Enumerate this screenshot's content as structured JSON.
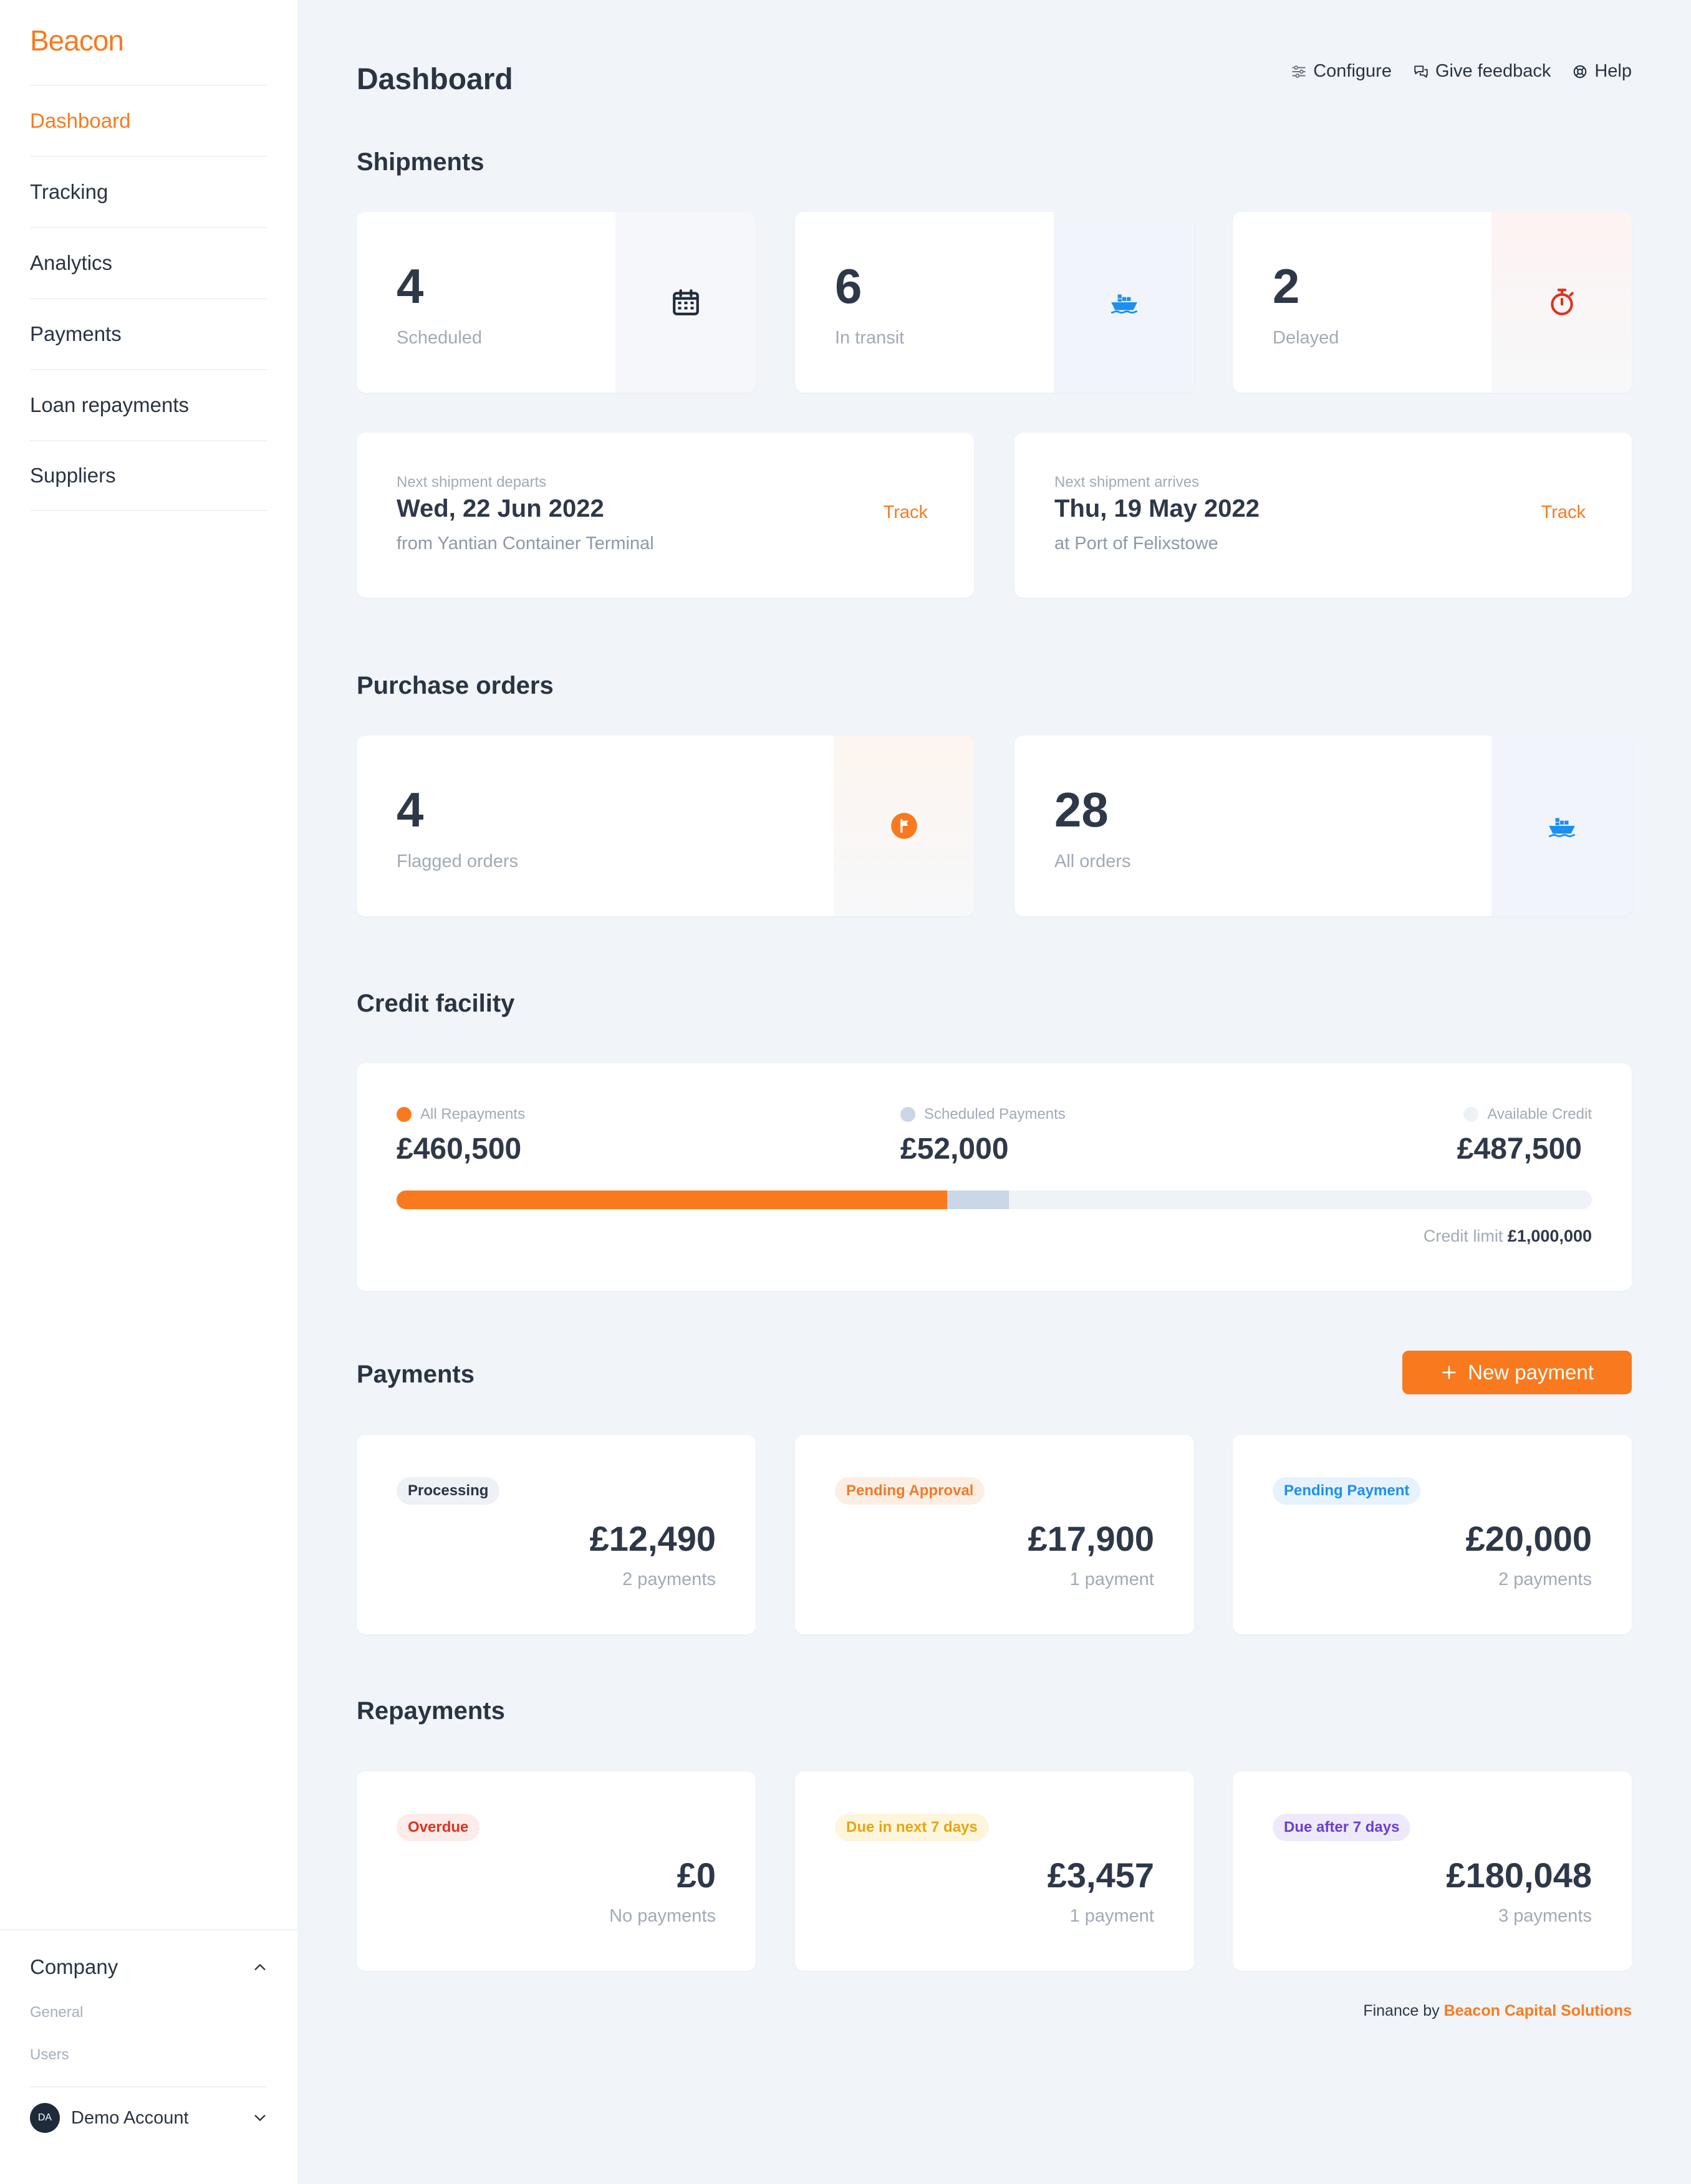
{
  "colors": {
    "accent": "#f97a1e",
    "scheduled_bar": "#cbd6e6",
    "available_dot": "#eef1f6",
    "ship_blue": "#1d8ff0",
    "delay_red": "#e0321f"
  },
  "sidebar": {
    "logo": "Beacon",
    "items": [
      {
        "label": "Dashboard"
      },
      {
        "label": "Tracking"
      },
      {
        "label": "Analytics"
      },
      {
        "label": "Payments"
      },
      {
        "label": "Loan repayments"
      },
      {
        "label": "Suppliers"
      }
    ],
    "company": {
      "label": "Company",
      "icon": "chevron-up-icon",
      "links": [
        {
          "label": "General"
        },
        {
          "label": "Users"
        }
      ]
    },
    "account": {
      "initials": "DA",
      "name": "Demo Account",
      "icon": "chevron-down-icon"
    }
  },
  "header": {
    "title": "Dashboard",
    "actions": [
      {
        "label": "Configure",
        "icon": "sliders-icon"
      },
      {
        "label": "Give feedback",
        "icon": "chat-icon"
      },
      {
        "label": "Help",
        "icon": "lifebuoy-icon"
      }
    ]
  },
  "shipments": {
    "title": "Shipments",
    "stats": [
      {
        "value": "4",
        "label": "Scheduled",
        "icon": "calendar-icon"
      },
      {
        "value": "6",
        "label": "In transit",
        "icon": "ship-icon"
      },
      {
        "value": "2",
        "label": "Delayed",
        "icon": "stopwatch-icon"
      }
    ],
    "next": [
      {
        "caption": "Next shipment departs",
        "date": "Wed, 22 Jun 2022",
        "location": "from Yantian Container Terminal",
        "action": "Track"
      },
      {
        "caption": "Next shipment arrives",
        "date": "Thu, 19 May 2022",
        "location": "at Port of Felixstowe",
        "action": "Track"
      }
    ]
  },
  "purchase_orders": {
    "title": "Purchase orders",
    "stats": [
      {
        "value": "4",
        "label": "Flagged orders",
        "icon": "flag-icon"
      },
      {
        "value": "28",
        "label": "All orders",
        "icon": "ship-icon"
      }
    ]
  },
  "credit": {
    "title": "Credit facility",
    "legend": [
      {
        "label": "All Repayments",
        "amount": "£460,500"
      },
      {
        "label": "Scheduled Payments",
        "amount": "£52,000"
      },
      {
        "label": "Available Credit",
        "amount": "£487,500"
      }
    ],
    "repaid_fraction": 0.4605,
    "scheduled_fraction": 0.052,
    "limit_label": "Credit limit",
    "limit_value": "£1,000,000"
  },
  "payments": {
    "title": "Payments",
    "new_button": "New payment",
    "cards": [
      {
        "badge": "Processing",
        "amount": "£12,490",
        "count": "2 payments"
      },
      {
        "badge": "Pending Approval",
        "amount": "£17,900",
        "count": "1 payment"
      },
      {
        "badge": "Pending Payment",
        "amount": "£20,000",
        "count": "2 payments"
      }
    ]
  },
  "repayments": {
    "title": "Repayments",
    "cards": [
      {
        "badge": "Overdue",
        "amount": "£0",
        "count": "No payments"
      },
      {
        "badge": "Due in next 7 days",
        "amount": "£3,457",
        "count": "1 payment"
      },
      {
        "badge": "Due after 7 days",
        "amount": "£180,048",
        "count": "3 payments"
      }
    ]
  },
  "footer": {
    "prefix": "Finance by",
    "brand": "Beacon Capital Solutions"
  }
}
